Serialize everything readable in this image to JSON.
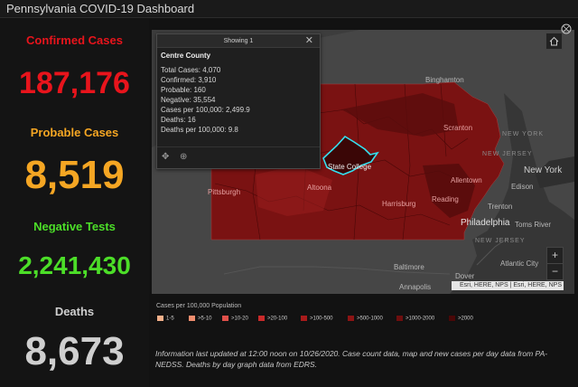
{
  "header": {
    "title": "Pennsylvania COVID-19 Dashboard"
  },
  "stats": {
    "confirmed_label": "Confirmed Cases",
    "confirmed_value": "187,176",
    "probable_label": "Probable Cases",
    "probable_value": "8,519",
    "negative_label": "Negative Tests",
    "negative_value": "2,241,430",
    "deaths_label": "Deaths",
    "deaths_value": "8,673"
  },
  "colors": {
    "confirmed": "#e8141c",
    "probable": "#f5a623",
    "negative": "#4cde28",
    "deaths": "#cfcfcf"
  },
  "popup": {
    "header": "Showing 1",
    "county": "Centre County",
    "rows": [
      "Total Cases: 4,070",
      "Confirmed: 3,910",
      "Probable: 160",
      "Negative: 35,554",
      "Cases per 100,000: 2,499.9",
      "Deaths: 16",
      "Deaths per 100,000: 9.8"
    ],
    "icons": [
      "move-icon",
      "zoom-to-icon",
      "close-icon"
    ]
  },
  "map": {
    "places": {
      "binghamton": "Binghamton",
      "scranton": "Scranton",
      "new_york_state": "NEW YORK",
      "new_jersey": "NEW JERSEY",
      "new_york_city": "New York",
      "edison": "Edison",
      "allentown": "Allentown",
      "trenton": "Trenton",
      "toms_river": "Toms River",
      "philadelphia": "Philadelphia",
      "reading": "Reading",
      "harrisburg": "Harrisburg",
      "state_college": "State College",
      "altoona": "Altoona",
      "pittsburgh": "Pittsburgh",
      "baltimore": "Baltimore",
      "annapolis": "Annapolis",
      "dover": "Dover",
      "atlantic_city": "Atlantic City",
      "new_jersey_low": "NEW JERSEY"
    },
    "attribution": "Esri, HERE, NPS | Esri, HERE, NPS",
    "zoom_in": "+",
    "zoom_out": "−",
    "icons": [
      "home-icon",
      "expand-icon"
    ]
  },
  "legend": {
    "title": "Cases per 100,000 Population",
    "items": [
      {
        "label": "1-5",
        "color": "#f4b08a"
      },
      {
        "label": ">5-10",
        "color": "#ef8d6e"
      },
      {
        "label": ">10-20",
        "color": "#e0504a"
      },
      {
        "label": ">20-100",
        "color": "#c92a2a"
      },
      {
        "label": ">100-500",
        "color": "#a81b1b"
      },
      {
        "label": ">500-1000",
        "color": "#8c1414"
      },
      {
        "label": ">1000-2000",
        "color": "#6e0e0e"
      },
      {
        "label": ">2000",
        "color": "#4a0808"
      }
    ]
  },
  "info": {
    "text": "Information last updated at 12:00 noon on 10/26/2020. Case count data, map and new cases per day data from PA-NEDSS.  Deaths by day graph data from EDRS."
  }
}
